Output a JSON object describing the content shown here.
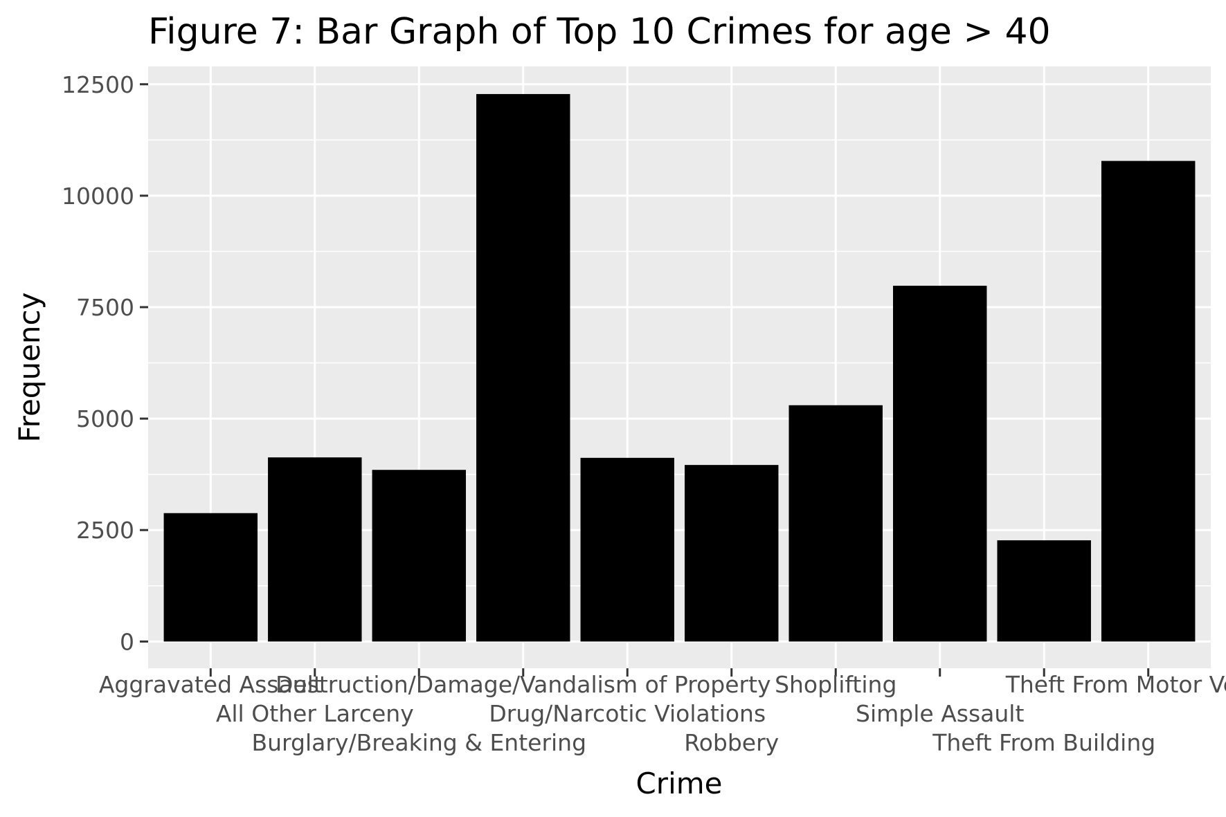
{
  "colors": {
    "panel_background": "#ebebeb",
    "grid_major": "#ffffff",
    "bar_fill": "#000000",
    "tick_mark": "#333333",
    "tick_label": "#4d4d4d"
  },
  "chart_data": {
    "type": "bar",
    "title": "Figure 7: Bar Graph of Top 10 Crimes for age > 40",
    "xlabel": "Crime",
    "ylabel": "Frequency",
    "categories": [
      "Aggravated Assault",
      "All Other Larceny",
      "Burglary/Breaking & Entering",
      "Destruction/Damage/Vandalism of Property",
      "Drug/Narcotic Violations",
      "Robbery",
      "Shoplifting",
      "Simple Assault",
      "Theft From Building",
      "Theft From Motor Vehicle"
    ],
    "values": [
      2880,
      4130,
      3850,
      12280,
      4120,
      3960,
      5300,
      7980,
      2270,
      10780
    ],
    "ylim": [
      -600,
      12900
    ],
    "y_ticks": [
      0,
      2500,
      5000,
      7500,
      10000,
      12500
    ],
    "y_tick_labels": [
      "0",
      "2500",
      "5000",
      "7500",
      "10000",
      "12500"
    ],
    "grid": true,
    "legend": "none"
  }
}
